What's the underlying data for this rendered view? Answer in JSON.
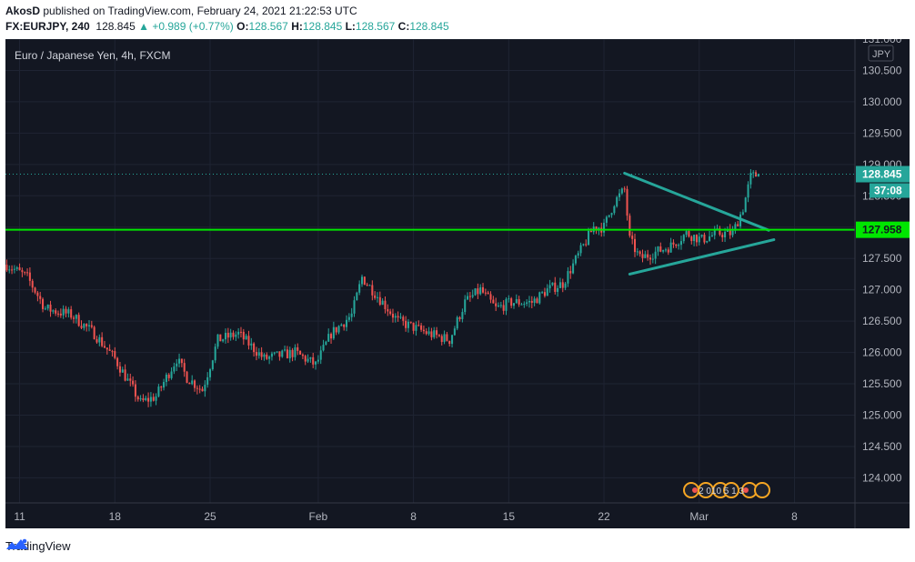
{
  "header": {
    "publisher": "AkosD",
    "published_text": "published on TradingView.com, February 24, 2021 21:22:53 UTC",
    "symbol": "FX:EURJPY, 240",
    "price": "128.845",
    "change": "+0.989 (+0.77%)",
    "o_label": "O:",
    "o_value": "128.567",
    "h_label": "H:",
    "h_value": "128.845",
    "l_label": "L:",
    "l_value": "128.567",
    "c_label": "C:",
    "c_value": "128.845"
  },
  "footer": {
    "brand": "TradingView"
  },
  "colors": {
    "background": "#131722",
    "up": "#26a69a",
    "down": "#ef5350",
    "support_line": "#00e600",
    "triangle": "#26a69a",
    "axis_text": "#b2b5be"
  },
  "chart_data": {
    "type": "candlestick",
    "title": "Euro / Japanese Yen, 4h, FXCM",
    "currency": "JPY",
    "ylim": [
      123.6,
      131.0
    ],
    "y_ticks": [
      124.0,
      124.5,
      125.0,
      125.5,
      126.0,
      126.5,
      127.0,
      127.5,
      128.0,
      128.5,
      129.0,
      129.5,
      130.0,
      130.5,
      131.0
    ],
    "x_ticks": [
      "11",
      "18",
      "25",
      "Feb",
      "8",
      "15",
      "22",
      "Mar",
      "8"
    ],
    "last_price": 128.845,
    "countdown": "37:08",
    "support_level": 127.958,
    "anchors": [
      [
        0,
        127.4
      ],
      [
        8,
        127.2
      ],
      [
        15,
        126.7
      ],
      [
        25,
        126.6
      ],
      [
        34,
        126.3
      ],
      [
        42,
        125.9
      ],
      [
        52,
        125.2
      ],
      [
        58,
        125.3
      ],
      [
        66,
        125.9
      ],
      [
        70,
        125.6
      ],
      [
        76,
        125.4
      ],
      [
        82,
        126.2
      ],
      [
        90,
        126.3
      ],
      [
        100,
        125.9
      ],
      [
        112,
        126.0
      ],
      [
        120,
        125.8
      ],
      [
        126,
        126.3
      ],
      [
        134,
        126.6
      ],
      [
        138,
        127.2
      ],
      [
        146,
        126.8
      ],
      [
        152,
        126.5
      ],
      [
        158,
        126.4
      ],
      [
        164,
        126.3
      ],
      [
        172,
        126.2
      ],
      [
        178,
        126.8
      ],
      [
        184,
        127.0
      ],
      [
        190,
        126.7
      ],
      [
        196,
        126.8
      ],
      [
        204,
        126.8
      ],
      [
        210,
        127.0
      ],
      [
        216,
        127.1
      ],
      [
        220,
        127.4
      ],
      [
        224,
        127.7
      ],
      [
        228,
        128.0
      ],
      [
        232,
        128.0
      ],
      [
        236,
        128.4
      ],
      [
        240,
        128.6
      ],
      [
        242,
        127.8
      ],
      [
        246,
        127.5
      ],
      [
        252,
        127.6
      ],
      [
        258,
        127.7
      ],
      [
        264,
        127.9
      ],
      [
        270,
        127.8
      ],
      [
        276,
        127.9
      ],
      [
        282,
        127.9
      ],
      [
        286,
        128.3
      ],
      [
        289,
        128.8
      ],
      [
        292,
        128.845
      ]
    ],
    "triangle_lines": [
      {
        "from": [
          240,
          128.86
        ],
        "to": [
          296,
          127.95
        ]
      },
      {
        "from": [
          242,
          127.25
        ],
        "to": [
          298,
          127.8
        ]
      }
    ],
    "events_label": "2 010 5 1 3"
  }
}
